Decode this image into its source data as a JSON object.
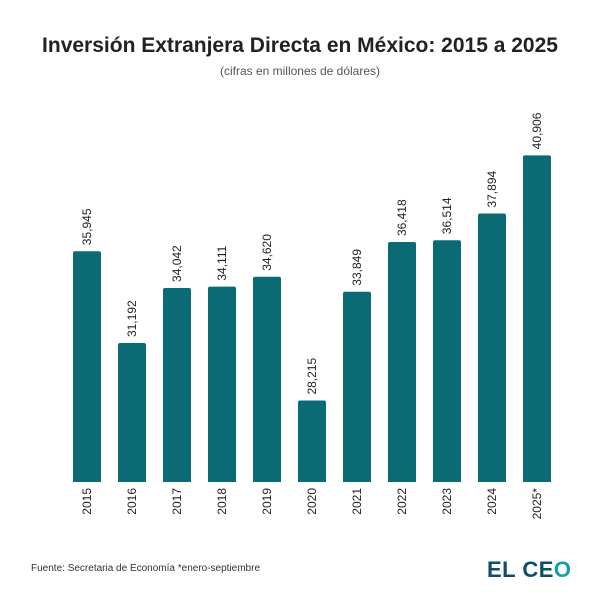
{
  "title": "Inversión Extranjera Directa en México: 2015 a 2025",
  "subtitle": "(cifras en millones de dólares)",
  "source": "Fuente: Secretaria de Economía *enero-septiembre",
  "logo": {
    "text_main": "EL CE",
    "text_accent": "O"
  },
  "colors": {
    "bar": "#0b6b75",
    "logo": "#0d4f63",
    "logo_accent": "#14a0a8"
  },
  "chart_data": {
    "type": "bar",
    "categories": [
      "2015",
      "2016",
      "2017",
      "2018",
      "2019",
      "2020",
      "2021",
      "2022",
      "2023",
      "2024",
      "2025*"
    ],
    "values": [
      35945,
      31192,
      34042,
      34111,
      34620,
      28215,
      33849,
      36418,
      36514,
      37894,
      40906
    ],
    "data_labels": [
      "35,945",
      "31,192",
      "34,042",
      "34,111",
      "34,620",
      "28,215",
      "33,849",
      "36,418",
      "36,514",
      "37,894",
      "40,906"
    ],
    "title": "Inversión Extranjera Directa en México: 2015 a 2025",
    "subtitle": "(cifras en millones de dólares)",
    "xlabel": "",
    "ylabel": "",
    "ylim": [
      24000,
      41700
    ],
    "grid": false,
    "legend": "none"
  }
}
